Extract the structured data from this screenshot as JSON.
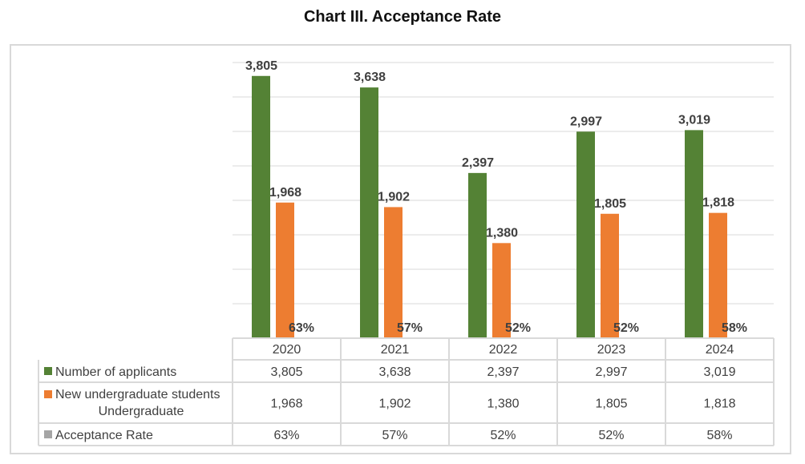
{
  "chart_data": {
    "type": "bar",
    "title": "Chart III. Acceptance Rate",
    "categories": [
      "2020",
      "2021",
      "2022",
      "2023",
      "2024"
    ],
    "ylim": [
      0,
      4000
    ],
    "grid": true,
    "legend": "data-table-bottom",
    "series": [
      {
        "name": "Number of applicants",
        "color": "#548235",
        "values": [
          3805,
          3638,
          2397,
          2997,
          3019
        ],
        "labels": [
          "3,805",
          "3,638",
          "2,397",
          "2,997",
          "3,019"
        ]
      },
      {
        "name": "New undergraduate students Undergraduate",
        "name_lines": [
          "New undergraduate students",
          "Undergraduate"
        ],
        "color": "#ed7d31",
        "values": [
          1968,
          1902,
          1380,
          1805,
          1818
        ],
        "labels": [
          "1,968",
          "1,902",
          "1,380",
          "1,805",
          "1,818"
        ]
      },
      {
        "name": "Acceptance Rate",
        "color": "#a5a5a5",
        "values": [
          0.63,
          0.57,
          0.52,
          0.52,
          0.58
        ],
        "labels": [
          "63%",
          "57%",
          "52%",
          "52%",
          "58%"
        ]
      }
    ]
  }
}
